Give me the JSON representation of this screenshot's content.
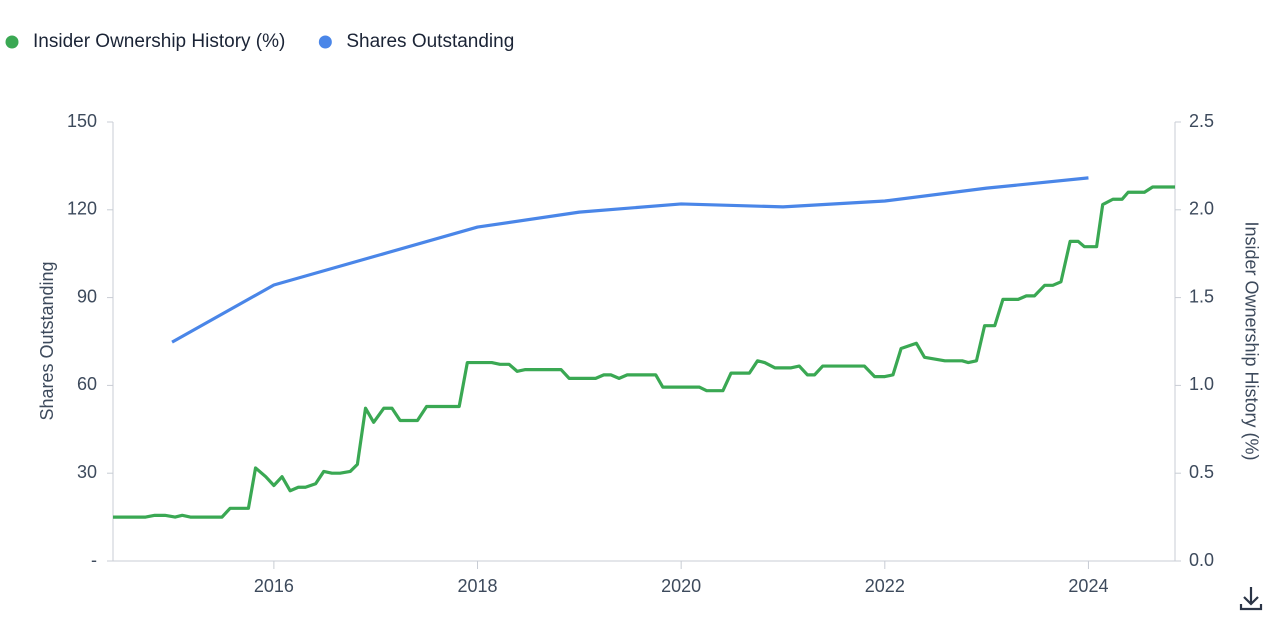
{
  "chart_data": {
    "type": "line",
    "xlim": [
      2014.42,
      2024.85
    ],
    "xticks": [
      2016,
      2018,
      2020,
      2022,
      2024
    ],
    "ylabel": "Shares Outstanding",
    "ylim": [
      0,
      150
    ],
    "yticks": [
      {
        "value": 0,
        "label": "-"
      },
      30,
      60,
      90,
      120,
      150
    ],
    "y2label": "Insider Ownership History (%)",
    "y2lim": [
      0,
      2.5
    ],
    "y2ticks": [
      {
        "value": 0,
        "label": "0.0"
      },
      0.5,
      {
        "value": 1,
        "label": "1.0"
      },
      1.5,
      {
        "value": 2,
        "label": "2.0"
      },
      2.5
    ],
    "series": [
      {
        "name": "Insider Ownership History (%)",
        "color": "#3aa853",
        "axis": "y2",
        "x": [
          2014.42,
          2014.74,
          2014.83,
          2014.93,
          2015.03,
          2015.1,
          2015.18,
          2015.49,
          2015.57,
          2015.75,
          2015.82,
          2015.92,
          2016.0,
          2016.08,
          2016.16,
          2016.24,
          2016.31,
          2016.41,
          2016.49,
          2016.57,
          2016.65,
          2016.75,
          2016.82,
          2016.9,
          2016.98,
          2017.08,
          2017.16,
          2017.24,
          2017.41,
          2017.5,
          2017.82,
          2017.9,
          2018.14,
          2018.22,
          2018.31,
          2018.39,
          2018.47,
          2018.82,
          2018.9,
          2019.16,
          2019.24,
          2019.31,
          2019.39,
          2019.47,
          2019.75,
          2019.82,
          2020.18,
          2020.25,
          2020.41,
          2020.49,
          2020.67,
          2020.75,
          2020.82,
          2020.92,
          2021.08,
          2021.16,
          2021.24,
          2021.31,
          2021.39,
          2021.8,
          2021.9,
          2022.0,
          2022.08,
          2022.16,
          2022.31,
          2022.39,
          2022.59,
          2022.76,
          2022.82,
          2022.9,
          2022.98,
          2023.08,
          2023.16,
          2023.31,
          2023.39,
          2023.47,
          2023.57,
          2023.65,
          2023.73,
          2023.82,
          2023.9,
          2023.96,
          2024.08,
          2024.14,
          2024.24,
          2024.33,
          2024.39,
          2024.55,
          2024.63,
          2024.85
        ],
        "values": [
          0.25,
          0.25,
          0.26,
          0.26,
          0.25,
          0.26,
          0.25,
          0.25,
          0.3,
          0.3,
          0.53,
          0.48,
          0.43,
          0.48,
          0.4,
          0.42,
          0.42,
          0.44,
          0.51,
          0.5,
          0.5,
          0.51,
          0.55,
          0.87,
          0.79,
          0.87,
          0.87,
          0.8,
          0.8,
          0.88,
          0.88,
          1.13,
          1.13,
          1.12,
          1.12,
          1.08,
          1.09,
          1.09,
          1.04,
          1.04,
          1.06,
          1.06,
          1.04,
          1.06,
          1.06,
          0.99,
          0.99,
          0.97,
          0.97,
          1.07,
          1.07,
          1.14,
          1.13,
          1.1,
          1.1,
          1.11,
          1.06,
          1.06,
          1.11,
          1.11,
          1.05,
          1.05,
          1.06,
          1.21,
          1.24,
          1.16,
          1.14,
          1.14,
          1.13,
          1.14,
          1.34,
          1.34,
          1.49,
          1.49,
          1.51,
          1.51,
          1.57,
          1.57,
          1.59,
          1.82,
          1.82,
          1.79,
          1.79,
          2.03,
          2.06,
          2.06,
          2.1,
          2.1,
          2.13,
          2.13
        ]
      },
      {
        "name": "Shares Outstanding",
        "color": "#4a86e8",
        "x": [
          2015,
          2016,
          2018,
          2019,
          2020,
          2021,
          2022,
          2023,
          2024
        ],
        "values": [
          74.8,
          94.3,
          114.1,
          119.2,
          122,
          121,
          123,
          127.4,
          130.9
        ]
      }
    ]
  }
}
